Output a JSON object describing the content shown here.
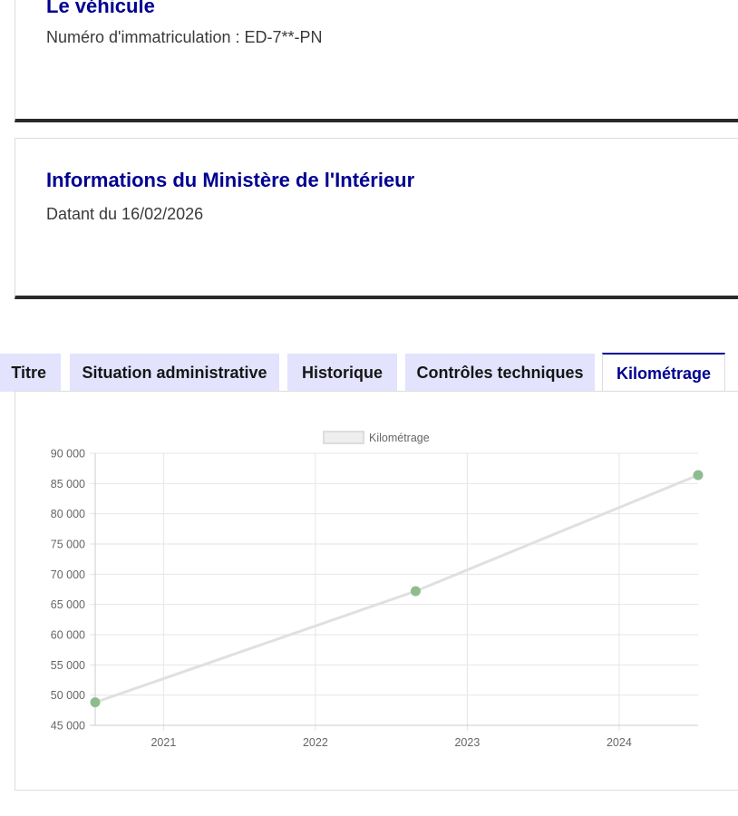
{
  "vehicle_card": {
    "title": "Le véhicule",
    "plate_text": "Numéro d'immatriculation : ED-7**-PN"
  },
  "ministry_card": {
    "title": "Informations du Ministère de l'Intérieur",
    "date_text": "Datant du 16/02/2026"
  },
  "tabs": [
    {
      "label": "Titre"
    },
    {
      "label": "Situation administrative"
    },
    {
      "label": "Historique"
    },
    {
      "label": "Contrôles techniques"
    },
    {
      "label": "Kilométrage"
    }
  ],
  "active_tab": "Kilométrage",
  "colors": {
    "title_blue": "#000091",
    "tab_bg": "#e3e3fd",
    "line": "#e0e0e0",
    "point": "#8fbc8f",
    "grid": "#e6e6e6"
  },
  "chart_data": {
    "type": "line",
    "title": "",
    "legend": [
      "Kilométrage"
    ],
    "legend_position": "top-center",
    "xlabel": "",
    "ylabel": "",
    "x_ticks": [
      2021,
      2022,
      2023,
      2024
    ],
    "y_ticks": [
      "45 000",
      "50 000",
      "55 000",
      "60 000",
      "65 000",
      "70 000",
      "75 000",
      "80 000",
      "85 000",
      "90 000"
    ],
    "xlim": [
      2020.55,
      2024.52
    ],
    "ylim": [
      45000,
      90000
    ],
    "grid": true,
    "series": [
      {
        "name": "Kilométrage",
        "x": [
          2020.55,
          2022.66,
          2024.52
        ],
        "values": [
          48800,
          67200,
          86400
        ]
      }
    ]
  }
}
